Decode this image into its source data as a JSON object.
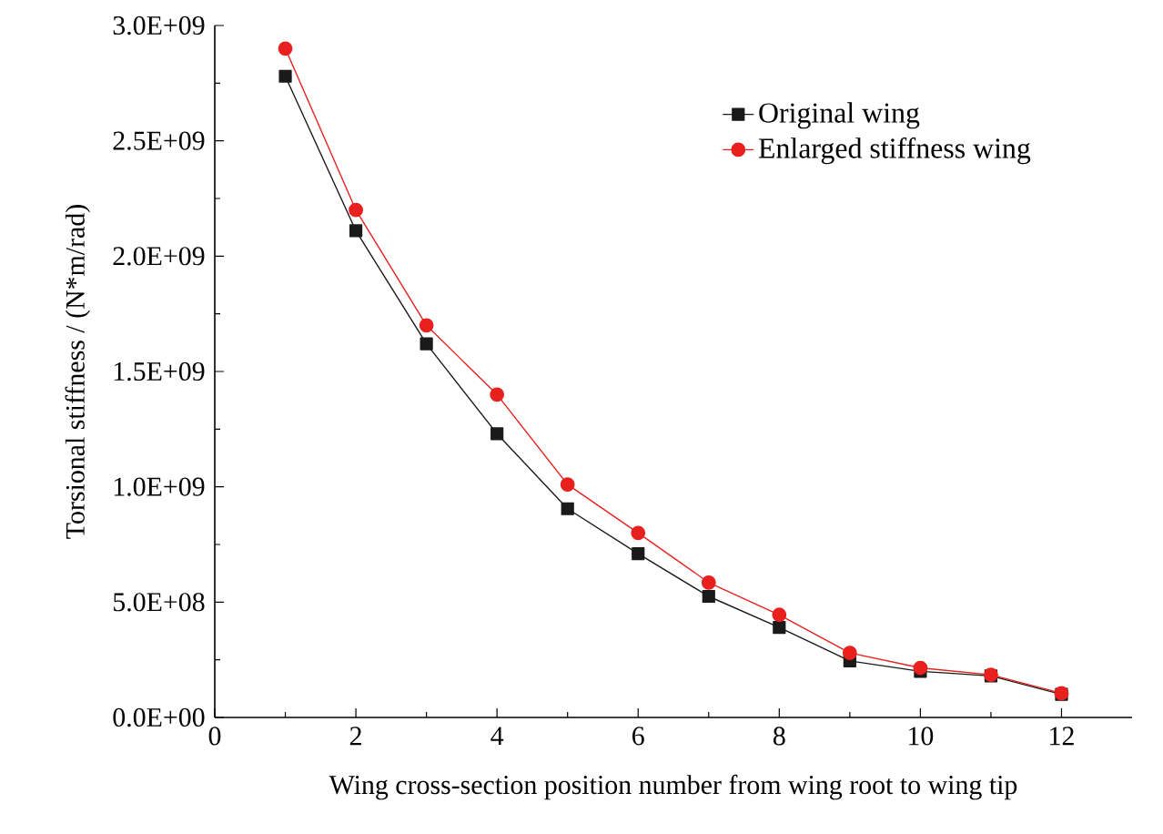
{
  "chart_data": {
    "type": "line",
    "xlabel": "Wing cross-section position number from wing root to wing tip",
    "ylabel": "Torsional stiffness / (N*m/rad)",
    "x": [
      1,
      2,
      3,
      4,
      5,
      6,
      7,
      8,
      9,
      10,
      11,
      12
    ],
    "series": [
      {
        "name": "Original wing",
        "color": "#1a1a1a",
        "marker": "square",
        "values": [
          2780000000.0,
          2110000000.0,
          1620000000.0,
          1230000000.0,
          905000000.0,
          710000000.0,
          525000000.0,
          390000000.0,
          245000000.0,
          200000000.0,
          180000000.0,
          100000000.0
        ]
      },
      {
        "name": "Enlarged stiffness wing",
        "color": "#e8201e",
        "marker": "circle",
        "values": [
          2900000000.0,
          2200000000.0,
          1700000000.0,
          1400000000.0,
          1010000000.0,
          800000000.0,
          585000000.0,
          445000000.0,
          280000000.0,
          215000000.0,
          185000000.0,
          105000000.0
        ]
      }
    ],
    "xlim": [
      0,
      13
    ],
    "xticks": [
      0,
      2,
      4,
      6,
      8,
      10,
      12
    ],
    "ylim": [
      0,
      3000000000.0
    ],
    "yticks": [
      {
        "value": 0,
        "label": "0.0E+00"
      },
      {
        "value": 500000000.0,
        "label": "5.0E+08"
      },
      {
        "value": 1000000000.0,
        "label": "1.0E+09"
      },
      {
        "value": 1500000000.0,
        "label": "1.5E+09"
      },
      {
        "value": 2000000000.0,
        "label": "2.0E+09"
      },
      {
        "value": 2500000000.0,
        "label": "2.5E+09"
      },
      {
        "value": 3000000000.0,
        "label": "3.0E+09"
      }
    ],
    "grid": false,
    "legend": "top right",
    "line_style": "solid"
  }
}
